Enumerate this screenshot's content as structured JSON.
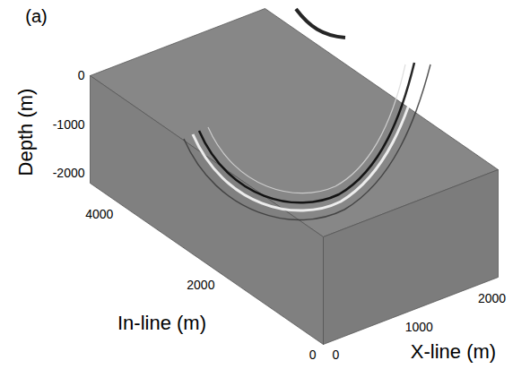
{
  "chart_data": {
    "type": "volume",
    "panel_label": "(a)",
    "xlabel": "In-line (m)",
    "ylabel": "X-line (m)",
    "zlabel": "Depth (m)",
    "xlim": [
      0,
      4600
    ],
    "xticks": [
      0,
      2000,
      4000
    ],
    "ylim": [
      0,
      2400
    ],
    "yticks": [
      0,
      1000,
      2000
    ],
    "zlim": [
      -2200,
      0
    ],
    "zticks": [
      -2000,
      -1000,
      0
    ],
    "color": "#808080"
  }
}
